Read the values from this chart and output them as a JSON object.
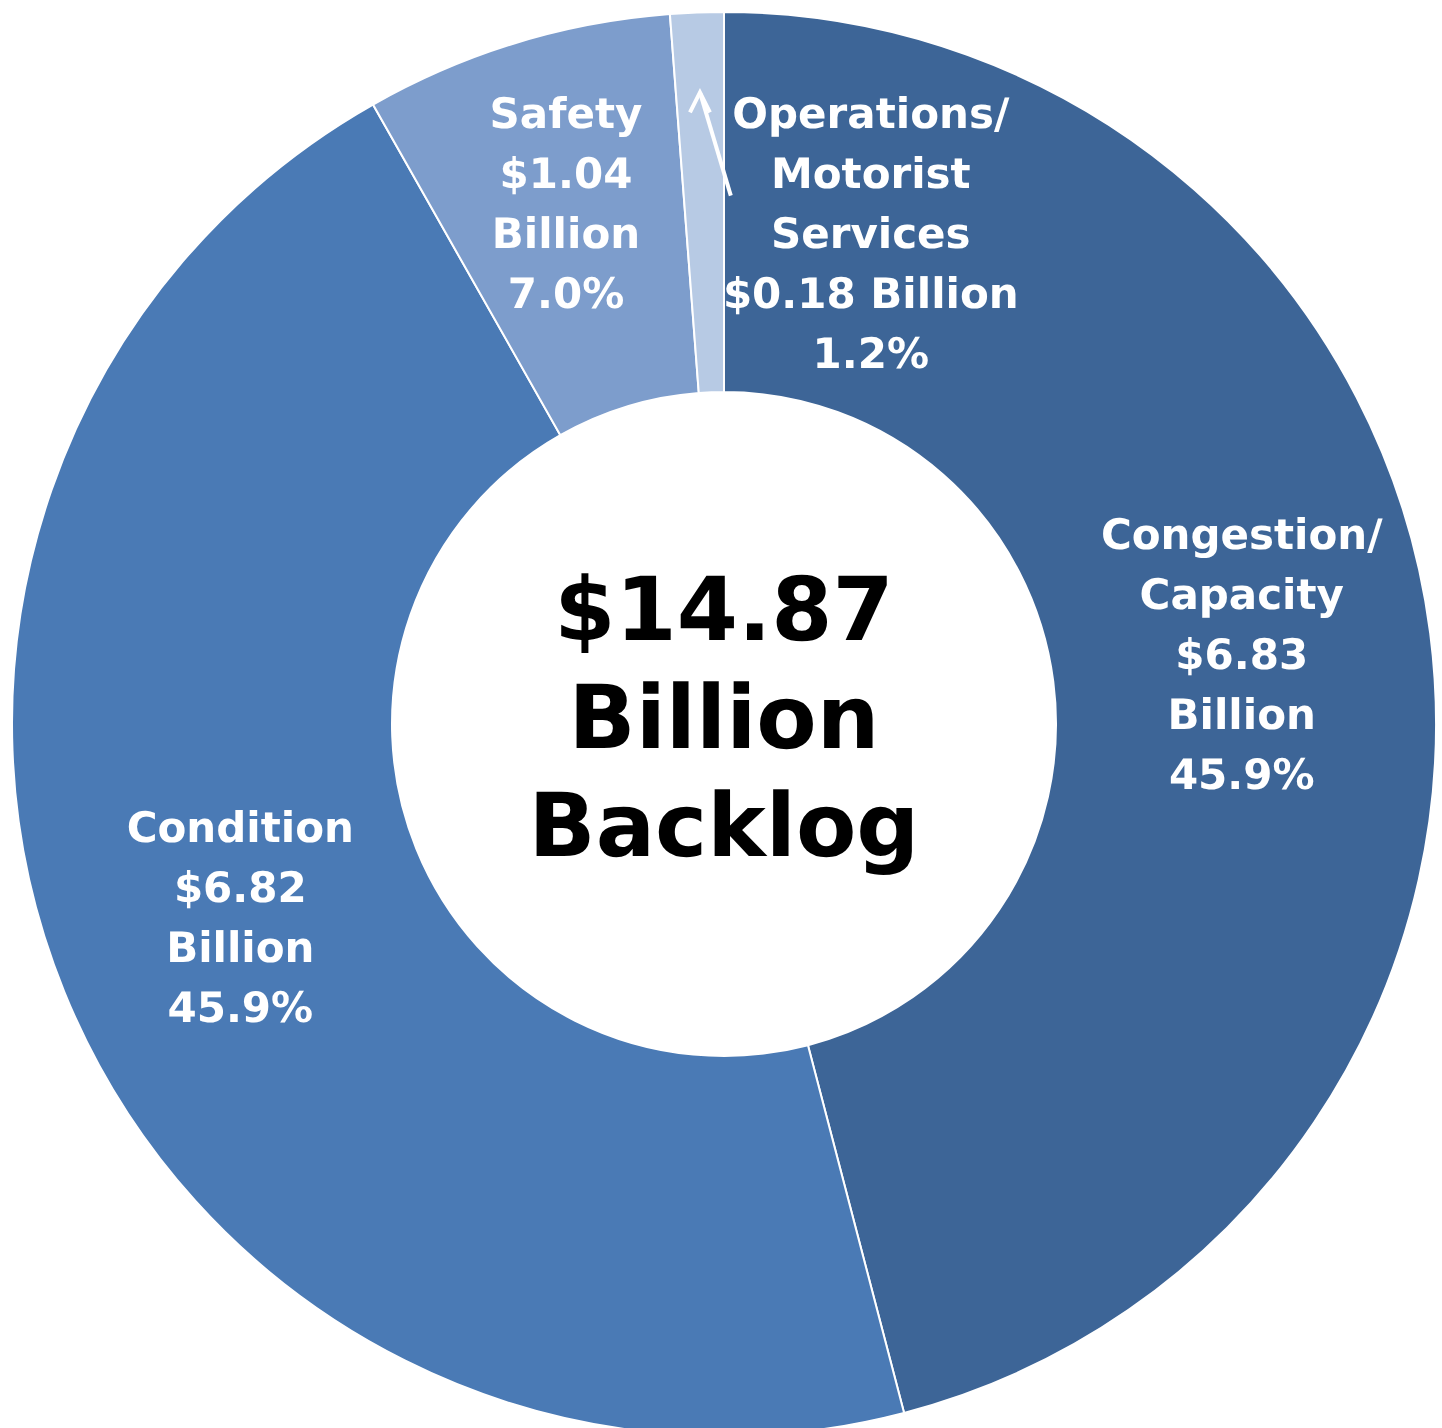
{
  "chart_data": {
    "type": "donut",
    "categories": [
      "Congestion/\nCapacity",
      "Condition",
      "Safety",
      "Operations/\nMotorist\nServices"
    ],
    "values": [
      6.83,
      6.82,
      1.04,
      0.18
    ],
    "colors": [
      "#3d6597",
      "#4a7ab5",
      "#7d9dcc",
      "#b7cae4"
    ],
    "value_labels": [
      "$6.83\nBillion\n45.9%",
      "$6.82\nBillion\n45.9%",
      "$1.04\nBillion\n7.0%",
      "$0.18 Billion\n1.2%"
    ],
    "annotations": [
      "$14.87\nBillion\nBacklog"
    ]
  }
}
